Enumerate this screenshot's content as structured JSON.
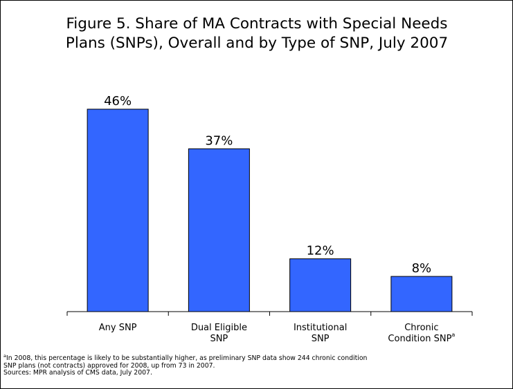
{
  "chart_data": {
    "type": "bar",
    "title": "Figure 5.  Share of MA Contracts with Special Needs Plans (SNPs), Overall and by Type of SNP, July 2007",
    "title_lines": [
      "Figure 5.  Share of MA Contracts with Special Needs",
      "Plans (SNPs), Overall and by Type of SNP, July 2007"
    ],
    "categories": [
      "Any SNP",
      "Dual Eligible SNP",
      "Institutional SNP",
      "Chronic Condition SNP"
    ],
    "category_lines": [
      [
        "Any SNP"
      ],
      [
        "Dual Eligible",
        "SNP"
      ],
      [
        "Institutional",
        "SNP"
      ],
      [
        "Chronic",
        "Condition SNP"
      ]
    ],
    "category_superscripts": [
      "",
      "",
      "",
      "a"
    ],
    "values": [
      46,
      37,
      12,
      8
    ],
    "value_labels": [
      "46%",
      "37%",
      "12%",
      "8%"
    ],
    "ylim": [
      0,
      50
    ],
    "grid": false,
    "bar_color": "#3366ff",
    "xlabel": "",
    "ylabel": ""
  },
  "footnotes": {
    "note_marker": "a",
    "note_line1": "In 2008, this percentage is likely to be substantially higher, as preliminary SNP data show 244 chronic condition",
    "note_line2": "SNP plans (not contracts) approved for 2008, up from 73 in 2007.",
    "sources": "Sources: MPR analysis of CMS data, July 2007."
  }
}
